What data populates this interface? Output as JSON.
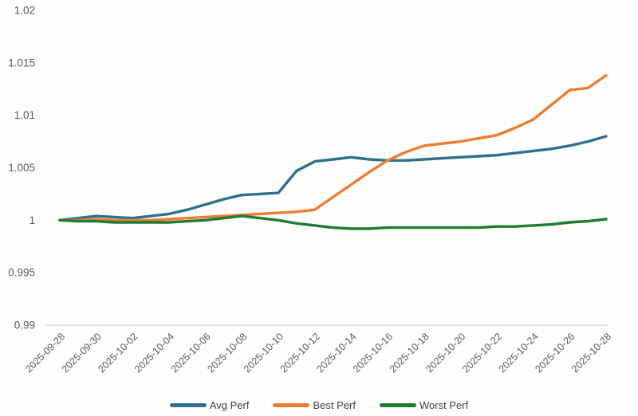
{
  "chart": {
    "background": "#fdfdfb",
    "axis_line_color": "#d6d6d4",
    "tick_label_color": "#595959",
    "legend_text_color": "#3f3f3f"
  },
  "chart_data": {
    "type": "line",
    "title": "",
    "xlabel": "",
    "ylabel": "",
    "ylim": [
      0.99,
      1.02
    ],
    "grid": false,
    "legend_position": "bottom-center",
    "x": [
      "2025-09-28",
      "2025-09-29",
      "2025-09-30",
      "2025-10-01",
      "2025-10-02",
      "2025-10-03",
      "2025-10-04",
      "2025-10-05",
      "2025-10-06",
      "2025-10-07",
      "2025-10-08",
      "2025-10-09",
      "2025-10-10",
      "2025-10-11",
      "2025-10-12",
      "2025-10-13",
      "2025-10-14",
      "2025-10-15",
      "2025-10-16",
      "2025-10-17",
      "2025-10-18",
      "2025-10-19",
      "2025-10-20",
      "2025-10-21",
      "2025-10-22",
      "2025-10-23",
      "2025-10-24",
      "2025-10-25",
      "2025-10-26",
      "2025-10-27",
      "2025-10-28"
    ],
    "x_tick_labels": [
      "2025-09-28",
      "2025-09-30",
      "2025-10-02",
      "2025-10-04",
      "2025-10-06",
      "2025-10-08",
      "2025-10-10",
      "2025-10-12",
      "2025-10-14",
      "2025-10-16",
      "2025-10-18",
      "2025-10-20",
      "2025-10-22",
      "2025-10-24",
      "2025-10-26",
      "2025-10-28"
    ],
    "y_ticks": [
      {
        "value": 1.02,
        "label": "1.02"
      },
      {
        "value": 1.015,
        "label": "1.015"
      },
      {
        "value": 1.01,
        "label": "1.01"
      },
      {
        "value": 1.005,
        "label": "1.005"
      },
      {
        "value": 1.0,
        "label": "1"
      },
      {
        "value": 0.995,
        "label": "0.995"
      },
      {
        "value": 0.99,
        "label": "0.99"
      }
    ],
    "series": [
      {
        "name": "Avg Perf",
        "color": "#2d708f",
        "values": [
          1.0,
          1.0002,
          1.0004,
          1.0003,
          1.0002,
          1.0004,
          1.0006,
          1.001,
          1.0015,
          1.002,
          1.0024,
          1.0025,
          1.0026,
          1.0047,
          1.0056,
          1.0058,
          1.006,
          1.0058,
          1.0057,
          1.0057,
          1.0058,
          1.0059,
          1.006,
          1.0061,
          1.0062,
          1.0064,
          1.0066,
          1.0068,
          1.0071,
          1.0075,
          1.008
        ]
      },
      {
        "name": "Best Perf",
        "color": "#ed7d31",
        "values": [
          1.0,
          1.0,
          1.0001,
          1.0,
          1.0,
          1.0,
          1.0001,
          1.0002,
          1.0003,
          1.0004,
          1.0005,
          1.0006,
          1.0007,
          1.0008,
          1.001,
          1.0022,
          1.0034,
          1.0046,
          1.0057,
          1.0065,
          1.0071,
          1.0073,
          1.0075,
          1.0078,
          1.0081,
          1.0088,
          1.0096,
          1.011,
          1.0124,
          1.0126,
          1.0138
        ]
      },
      {
        "name": "Worst Perf",
        "color": "#1e7b34",
        "values": [
          1.0,
          0.9999,
          0.9999,
          0.9998,
          0.9998,
          0.9998,
          0.9998,
          0.9999,
          1.0,
          1.0002,
          1.0004,
          1.0002,
          1.0,
          0.9997,
          0.9995,
          0.9993,
          0.9992,
          0.9992,
          0.9993,
          0.9993,
          0.9993,
          0.9993,
          0.9993,
          0.9993,
          0.9994,
          0.9994,
          0.9995,
          0.9996,
          0.9998,
          0.9999,
          1.0001
        ]
      }
    ]
  }
}
